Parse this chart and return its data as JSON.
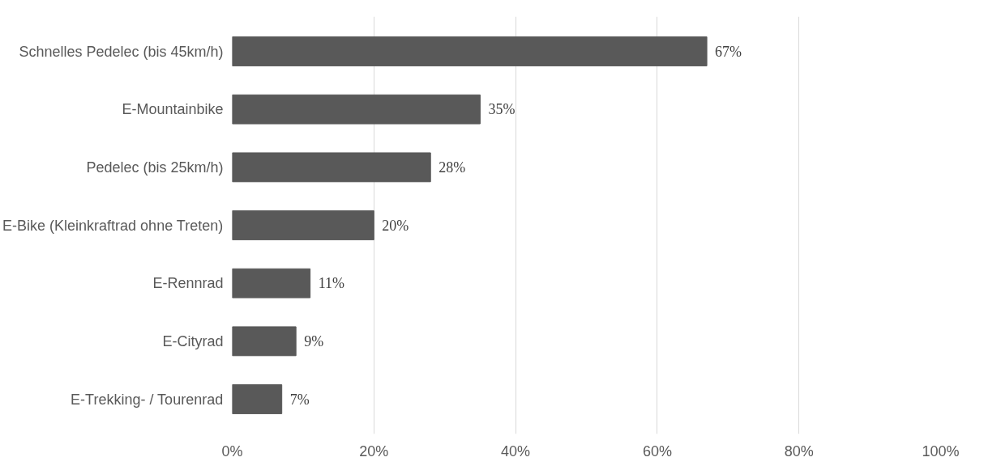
{
  "chart_data": {
    "type": "bar",
    "orientation": "horizontal",
    "categories": [
      "Schnelles Pedelec (bis 45km/h)",
      "E-Mountainbike",
      "Pedelec (bis 25km/h)",
      "E-Bike (Kleinkraftrad ohne Treten)",
      "E-Rennrad",
      "E-Cityrad",
      "E-Trekking- / Tourenrad"
    ],
    "values": [
      67,
      35,
      28,
      20,
      11,
      9,
      7
    ],
    "value_labels": [
      "67%",
      "35%",
      "28%",
      "20%",
      "11%",
      "9%",
      "7%"
    ],
    "color": "#595959",
    "xlim": [
      0,
      100
    ],
    "xticks": [
      {
        "value": 0,
        "label": "0%"
      },
      {
        "value": 20,
        "label": "20%"
      },
      {
        "value": 40,
        "label": "40%"
      },
      {
        "value": 60,
        "label": "60%"
      },
      {
        "value": 80,
        "label": "80%"
      },
      {
        "value": 100,
        "label": "100%"
      }
    ],
    "grid": "x"
  }
}
